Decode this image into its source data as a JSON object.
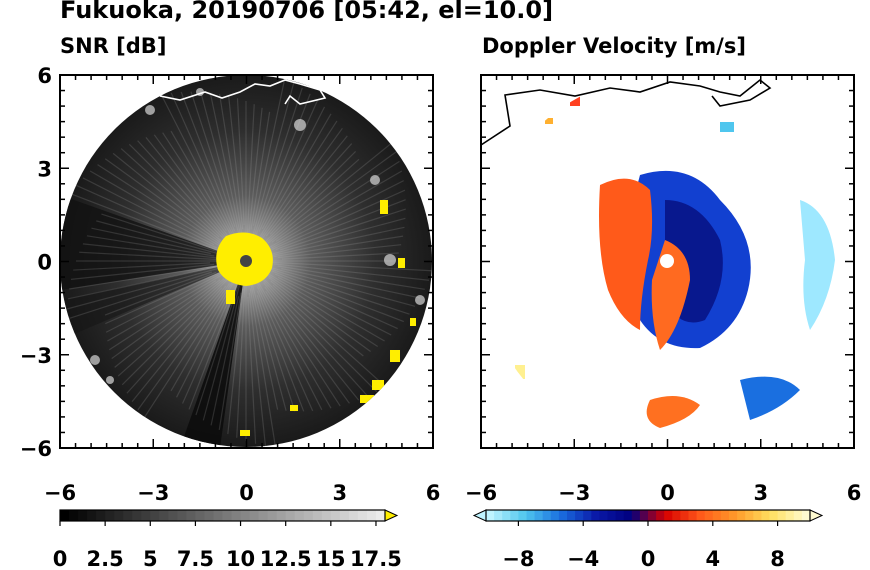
{
  "figure": {
    "title": "Fukuoka, 20190706 [05:42, el=10.0]"
  },
  "chart_data": [
    {
      "type": "heatmap",
      "title": "SNR [dB]",
      "xlim": [
        -6,
        6
      ],
      "ylim": [
        -6,
        6
      ],
      "xticks": [
        "−6",
        "−3",
        "0",
        "3",
        "6"
      ],
      "yticks": [
        "6",
        "3",
        "0",
        "−3",
        "−6"
      ],
      "colorbar": {
        "ticks": [
          "0",
          "2.5",
          "5",
          "7.5",
          "10",
          "12.5",
          "15",
          "17.5"
        ],
        "range": [
          0,
          18
        ],
        "over_color": "#ffee00",
        "colors": [
          "#000000",
          "#ffffff"
        ]
      },
      "radar_range_km": 6,
      "colors": {
        "background": "#2b2b2b",
        "strong_echo": "#ffee00",
        "center": "#444444"
      }
    },
    {
      "type": "heatmap",
      "title": "Doppler Velocity [m/s]",
      "xlim": [
        -6,
        6
      ],
      "ylim": [
        -6,
        6
      ],
      "xticks": [
        "−6",
        "−3",
        "0",
        "3",
        "6"
      ],
      "yticks": [
        "6",
        "3",
        "0",
        "−3",
        "−6"
      ],
      "colorbar": {
        "ticks": [
          "−8",
          "−4",
          "0",
          "4",
          "8"
        ],
        "range": [
          -10,
          10
        ],
        "colors": [
          "#bff4ff",
          "#4fc6ee",
          "#1a6fe0",
          "#0a1aa8",
          "#000080",
          "#d80000",
          "#ff5a1a",
          "#ff9a2a",
          "#ffe060",
          "#fffbd0"
        ]
      },
      "radar_range_km": 6,
      "colors": {
        "approaching": "#0a2bc0",
        "receding": "#ff5a1a"
      }
    }
  ]
}
